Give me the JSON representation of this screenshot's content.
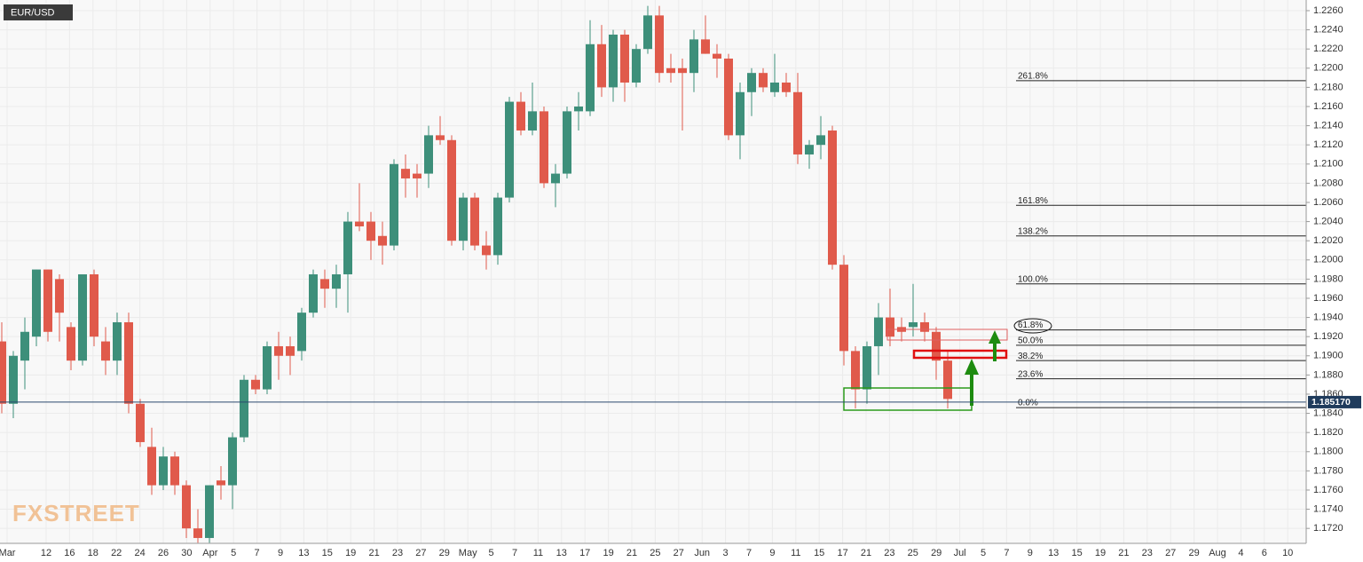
{
  "chart_data": {
    "type": "candlestick",
    "title": "EUR/USD",
    "watermark": "FXSTREET",
    "x_labels": [
      "Mar",
      "12",
      "16",
      "18",
      "22",
      "24",
      "26",
      "30",
      "Apr",
      "5",
      "7",
      "9",
      "13",
      "15",
      "19",
      "21",
      "23",
      "27",
      "29",
      "May",
      "5",
      "7",
      "11",
      "13",
      "17",
      "19",
      "21",
      "25",
      "27",
      "Jun",
      "3",
      "7",
      "9",
      "11",
      "15",
      "17",
      "21",
      "23",
      "25",
      "29",
      "Jul",
      "5",
      "7",
      "9",
      "13",
      "15",
      "19",
      "21",
      "23",
      "27",
      "29",
      "Aug",
      "4",
      "6",
      "10"
    ],
    "open": [
      1.1915,
      1.185,
      1.1895,
      1.192,
      1.199,
      1.198,
      1.193,
      1.1895,
      1.1985,
      1.1915,
      1.1895,
      1.1935,
      1.185,
      1.1805,
      1.1765,
      1.1795,
      1.1765,
      1.172,
      1.171,
      1.177,
      1.1765,
      1.1815,
      1.1875,
      1.1865,
      1.191,
      1.191,
      1.1905,
      1.1945,
      1.198,
      1.197,
      1.1985,
      1.204,
      1.204,
      1.2025,
      1.2015,
      1.2095,
      1.209,
      1.209,
      1.213,
      1.2125,
      1.202,
      1.2065,
      1.2015,
      1.2005,
      1.2065,
      1.2165,
      1.2135,
      1.2155,
      1.208,
      1.209,
      1.2155,
      1.2155,
      1.2225,
      1.218,
      1.2235,
      1.2185,
      1.222,
      1.2255,
      1.22,
      1.22,
      1.2195,
      1.223,
      1.2215,
      1.221,
      1.213,
      1.2175,
      1.2195,
      1.2175,
      1.2185,
      1.2175,
      1.211,
      1.212,
      1.2135,
      1.1995,
      1.1905,
      1.1865,
      1.191,
      1.194,
      1.193,
      1.193,
      1.1935,
      1.1925,
      1.1895
    ],
    "high": [
      1.1935,
      1.1905,
      1.194,
      1.199,
      1.199,
      1.1985,
      1.1935,
      1.1985,
      1.199,
      1.193,
      1.1945,
      1.1945,
      1.1855,
      1.1825,
      1.1805,
      1.18,
      1.177,
      1.174,
      1.1765,
      1.1785,
      1.182,
      1.188,
      1.188,
      1.1915,
      1.1925,
      1.192,
      1.195,
      1.199,
      1.199,
      1.1995,
      1.205,
      1.208,
      1.205,
      1.204,
      1.2105,
      1.211,
      1.21,
      1.214,
      1.215,
      1.213,
      1.207,
      1.207,
      1.203,
      1.207,
      1.217,
      1.2175,
      1.2185,
      1.216,
      1.21,
      1.216,
      1.2175,
      1.225,
      1.2245,
      1.224,
      1.224,
      1.2225,
      1.2265,
      1.2265,
      1.2215,
      1.221,
      1.224,
      1.2255,
      1.2225,
      1.2215,
      1.2185,
      1.22,
      1.22,
      1.2215,
      1.2195,
      1.2195,
      1.2125,
      1.215,
      1.214,
      1.2005,
      1.191,
      1.1915,
      1.1955,
      1.197,
      1.194,
      1.1975,
      1.1945,
      1.193,
      1.1905
    ],
    "low": [
      1.184,
      1.1835,
      1.1865,
      1.191,
      1.1915,
      1.1915,
      1.1885,
      1.189,
      1.191,
      1.188,
      1.188,
      1.184,
      1.1805,
      1.1755,
      1.176,
      1.1755,
      1.171,
      1.1705,
      1.1705,
      1.175,
      1.174,
      1.181,
      1.186,
      1.186,
      1.1875,
      1.188,
      1.1895,
      1.194,
      1.195,
      1.195,
      1.1945,
      1.203,
      1.2,
      1.1995,
      1.201,
      1.2065,
      1.2065,
      1.2075,
      1.212,
      1.2015,
      1.201,
      1.201,
      1.199,
      1.1995,
      1.206,
      1.213,
      1.213,
      1.2075,
      1.2055,
      1.2085,
      1.2135,
      1.215,
      1.217,
      1.2165,
      1.2165,
      1.218,
      1.2215,
      1.2185,
      1.2185,
      1.2135,
      1.2175,
      1.2215,
      1.219,
      1.2125,
      1.2105,
      1.215,
      1.2175,
      1.217,
      1.217,
      1.21,
      1.2095,
      1.2105,
      1.199,
      1.189,
      1.1845,
      1.185,
      1.188,
      1.191,
      1.1915,
      1.192,
      1.1915,
      1.1875,
      1.1845
    ],
    "close": [
      1.185,
      1.19,
      1.1925,
      1.199,
      1.1925,
      1.1945,
      1.1895,
      1.1985,
      1.192,
      1.1895,
      1.1935,
      1.185,
      1.181,
      1.1765,
      1.1795,
      1.1765,
      1.172,
      1.171,
      1.1765,
      1.1765,
      1.1815,
      1.1875,
      1.1865,
      1.191,
      1.19,
      1.19,
      1.1945,
      1.1985,
      1.197,
      1.1985,
      1.204,
      1.2035,
      1.202,
      1.2015,
      1.21,
      1.2085,
      1.2085,
      1.213,
      1.2125,
      1.202,
      1.2065,
      1.2015,
      1.2005,
      1.2065,
      1.2165,
      1.2135,
      1.2155,
      1.208,
      1.209,
      1.2155,
      1.216,
      1.2225,
      1.218,
      1.2235,
      1.2185,
      1.222,
      1.2255,
      1.2195,
      1.2195,
      1.2195,
      1.223,
      1.2215,
      1.221,
      1.213,
      1.2175,
      1.2195,
      1.218,
      1.2185,
      1.2175,
      1.211,
      1.212,
      1.213,
      1.1995,
      1.1905,
      1.1865,
      1.191,
      1.194,
      1.192,
      1.1925,
      1.1935,
      1.1925,
      1.1895,
      1.1855
    ],
    "up_color": "#3d8f7a",
    "down_color": "#e05a4b",
    "ylim": [
      1.17044,
      1.22711
    ],
    "yticks": [
      {
        "value": 1.172,
        "label": "1.1720"
      },
      {
        "value": 1.174,
        "label": "1.1740"
      },
      {
        "value": 1.176,
        "label": "1.1760"
      },
      {
        "value": 1.178,
        "label": "1.1780"
      },
      {
        "value": 1.18,
        "label": "1.1800"
      },
      {
        "value": 1.182,
        "label": "1.1820"
      },
      {
        "value": 1.184,
        "label": "1.1840"
      },
      {
        "value": 1.186,
        "label": "1.1860"
      },
      {
        "value": 1.188,
        "label": "1.1880"
      },
      {
        "value": 1.19,
        "label": "1.1900"
      },
      {
        "value": 1.192,
        "label": "1.1920"
      },
      {
        "value": 1.194,
        "label": "1.1940"
      },
      {
        "value": 1.196,
        "label": "1.1960"
      },
      {
        "value": 1.198,
        "label": "1.1980"
      },
      {
        "value": 1.2,
        "label": "1.2000"
      },
      {
        "value": 1.202,
        "label": "1.2020"
      },
      {
        "value": 1.204,
        "label": "1.2040"
      },
      {
        "value": 1.206,
        "label": "1.2060"
      },
      {
        "value": 1.208,
        "label": "1.2080"
      },
      {
        "value": 1.21,
        "label": "1.2100"
      },
      {
        "value": 1.212,
        "label": "1.2120"
      },
      {
        "value": 1.214,
        "label": "1.2140"
      },
      {
        "value": 1.216,
        "label": "1.2160"
      },
      {
        "value": 1.218,
        "label": "1.2180"
      },
      {
        "value": 1.22,
        "label": "1.2200"
      },
      {
        "value": 1.222,
        "label": "1.2220"
      },
      {
        "value": 1.224,
        "label": "1.2240"
      },
      {
        "value": 1.226,
        "label": "1.2260"
      }
    ],
    "grid": true,
    "current_price": {
      "value": 1.18517,
      "label": "1.185170"
    },
    "fib_levels": [
      {
        "value": 1.2187,
        "label": "261.8%"
      },
      {
        "value": 1.2057,
        "label": "161.8%"
      },
      {
        "value": 1.2025,
        "label": "138.2%"
      },
      {
        "value": 1.1975,
        "label": "100.0%"
      },
      {
        "value": 1.1927,
        "label": "61.8%"
      },
      {
        "value": 1.1911,
        "label": "50.0%"
      },
      {
        "value": 1.1895,
        "label": "38.2%"
      },
      {
        "value": 1.1876,
        "label": "23.6%"
      },
      {
        "value": 1.1846,
        "label": "0.0%"
      }
    ]
  }
}
